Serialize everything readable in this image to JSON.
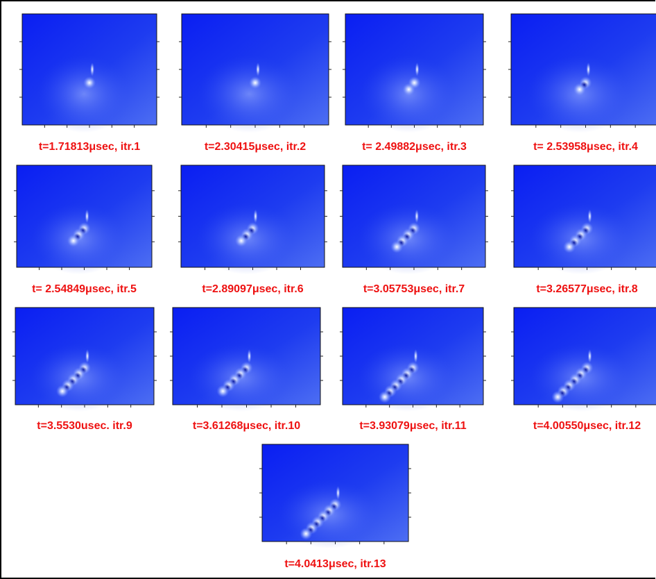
{
  "panels": [
    {
      "caption": "t=1.71813μsec, itr.1"
    },
    {
      "caption": "t=2.30415μsec, itr.2"
    },
    {
      "caption": "t= 2.49882μsec, itr.3"
    },
    {
      "caption": "t= 2.53958μsec, itr.4"
    },
    {
      "caption": "t= 2.54849μsec, itr.5"
    },
    {
      "caption": "t=2.89097μsec, itr.6"
    },
    {
      "caption": "t=3.05753μsec, itr.7"
    },
    {
      "caption": "t=3.26577μsec, itr.8"
    },
    {
      "caption": "t=3.5530usec. itr.9"
    },
    {
      "caption": "t=3.61268μsec, itr.10"
    },
    {
      "caption": "t=3.93079μsec, itr.11"
    },
    {
      "caption": "t=4.00550μsec, itr.12"
    },
    {
      "caption": "t=4.0413μsec, itr.13"
    }
  ]
}
